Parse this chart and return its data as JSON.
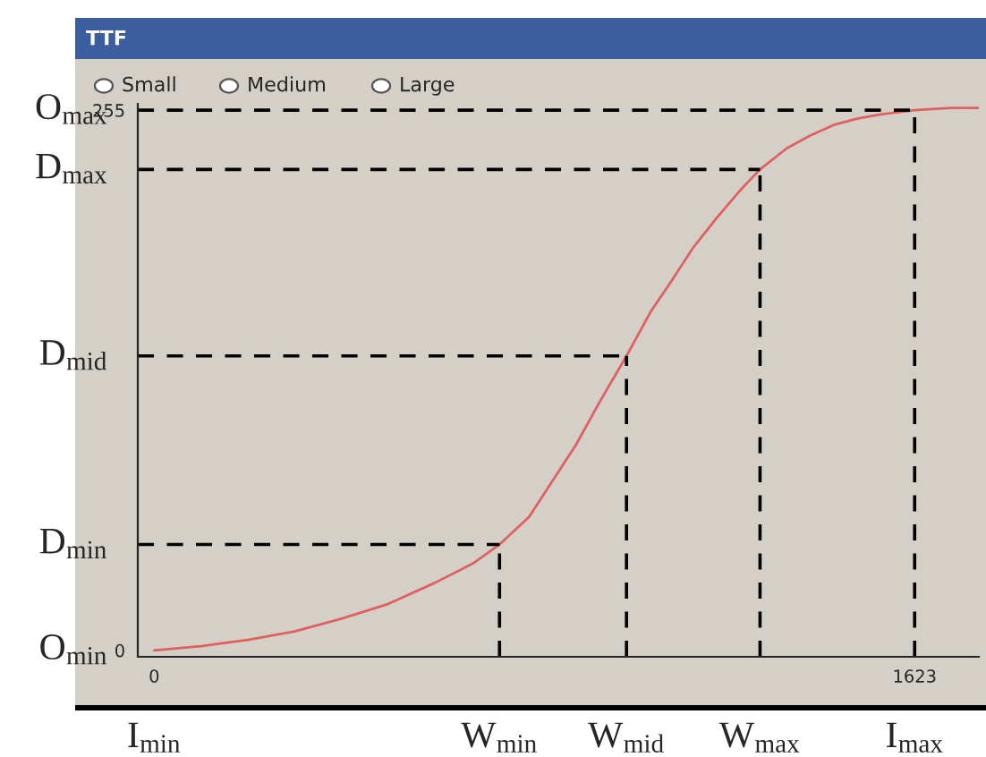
{
  "chart_data": {
    "type": "line",
    "title": "TTF",
    "annotations": [
      "Small",
      "Medium",
      "Large",
      "O$_{min}$",
      "I$_{min}$"
    ],
    "x": [
      0,
      100,
      200,
      300,
      400,
      500,
      600,
      680,
      737,
      800,
      850,
      900,
      950,
      1008,
      1060,
      1100,
      1150,
      1200,
      1250,
      1293,
      1350,
      1400,
      1450,
      1500,
      1550,
      1623,
      1700,
      1760
    ],
    "series": [
      {
        "color": "#e06060",
        "values": [
          0,
          2,
          5,
          9,
          15,
          22,
          32,
          41,
          50,
          63,
          80,
          97,
          117,
          139,
          160,
          173,
          190,
          204,
          217,
          227,
          237,
          243,
          248,
          251,
          253,
          255,
          256,
          256
        ]
      }
    ],
    "xlim": [
      -35,
      1760
    ],
    "ylim": [
      -3,
      258
    ],
    "xticks": [
      0,
      1623
    ],
    "yticks": [
      0,
      255
    ],
    "marker": "none",
    "line_style": "solid",
    "ref_lines": [
      {
        "axis": "y",
        "value": 50,
        "label": "D$_{min}$",
        "line_style": "dashed"
      },
      {
        "axis": "y",
        "value": 139,
        "label": "D$_{mid}$",
        "line_style": "dashed"
      },
      {
        "axis": "y",
        "value": 227,
        "label": "D$_{max}$",
        "line_style": "dashed"
      },
      {
        "axis": "y",
        "value": 255,
        "label": "O$_{max}$",
        "line_style": "dashed"
      },
      {
        "axis": "x",
        "value": 737,
        "label": "W$_{min}$",
        "line_style": "dashed"
      },
      {
        "axis": "x",
        "value": 1008,
        "label": "W$_{mid}$",
        "line_style": "dashed"
      },
      {
        "axis": "x",
        "value": 1293,
        "label": "W$_{max}$",
        "line_style": "dashed"
      },
      {
        "axis": "x",
        "value": 1623,
        "label": "I$_{max}$",
        "line_style": "dashed"
      }
    ]
  }
}
